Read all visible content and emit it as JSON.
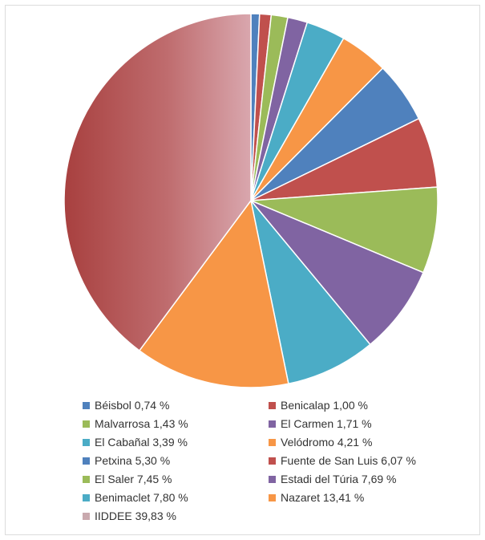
{
  "chart_data": {
    "type": "pie",
    "title": "",
    "start": "12 o'clock",
    "direction": "clockwise",
    "legend": "bottom",
    "slices": [
      {
        "label": "Béisbol 0,74 %",
        "name": "Béisbol",
        "value": 0.74,
        "color": "#4F81BD"
      },
      {
        "label": "Benicalap 1,00 %",
        "name": "Benicalap",
        "value": 1.0,
        "color": "#C0504D"
      },
      {
        "label": "Malvarrosa 1,43 %",
        "name": "Malvarrosa",
        "value": 1.43,
        "color": "#9BBB59"
      },
      {
        "label": "El Carmen 1,71 %",
        "name": "El Carmen",
        "value": 1.71,
        "color": "#8064A2"
      },
      {
        "label": "El Cabañal 3,39 %",
        "name": "El Cabañal",
        "value": 3.39,
        "color": "#4BACC6"
      },
      {
        "label": "Velódromo 4,21 %",
        "name": "Velódromo",
        "value": 4.21,
        "color": "#F79646"
      },
      {
        "label": "Petxina 5,30 %",
        "name": "Petxina",
        "value": 5.3,
        "color": "#4F81BD"
      },
      {
        "label": "Fuente de San Luis 6,07 %",
        "name": "Fuente de San Luis",
        "value": 6.07,
        "color": "#C0504D"
      },
      {
        "label": "El Saler 7,45 %",
        "name": "El Saler",
        "value": 7.45,
        "color": "#9BBB59"
      },
      {
        "label": "Estadi del Túria 7,69 %",
        "name": "Estadi del Túria",
        "value": 7.69,
        "color": "#8064A2"
      },
      {
        "label": "Benimaclet 7,80 %",
        "name": "Benimaclet",
        "value": 7.8,
        "color": "#4BACC6"
      },
      {
        "label": "Nazaret 13,41 %",
        "name": "Nazaret",
        "value": 13.41,
        "color": "#F79646"
      },
      {
        "label": "IIDDEE 39,83 %",
        "name": "IIDDEE",
        "value": 39.83,
        "color": "#C3A0A4"
      }
    ]
  }
}
